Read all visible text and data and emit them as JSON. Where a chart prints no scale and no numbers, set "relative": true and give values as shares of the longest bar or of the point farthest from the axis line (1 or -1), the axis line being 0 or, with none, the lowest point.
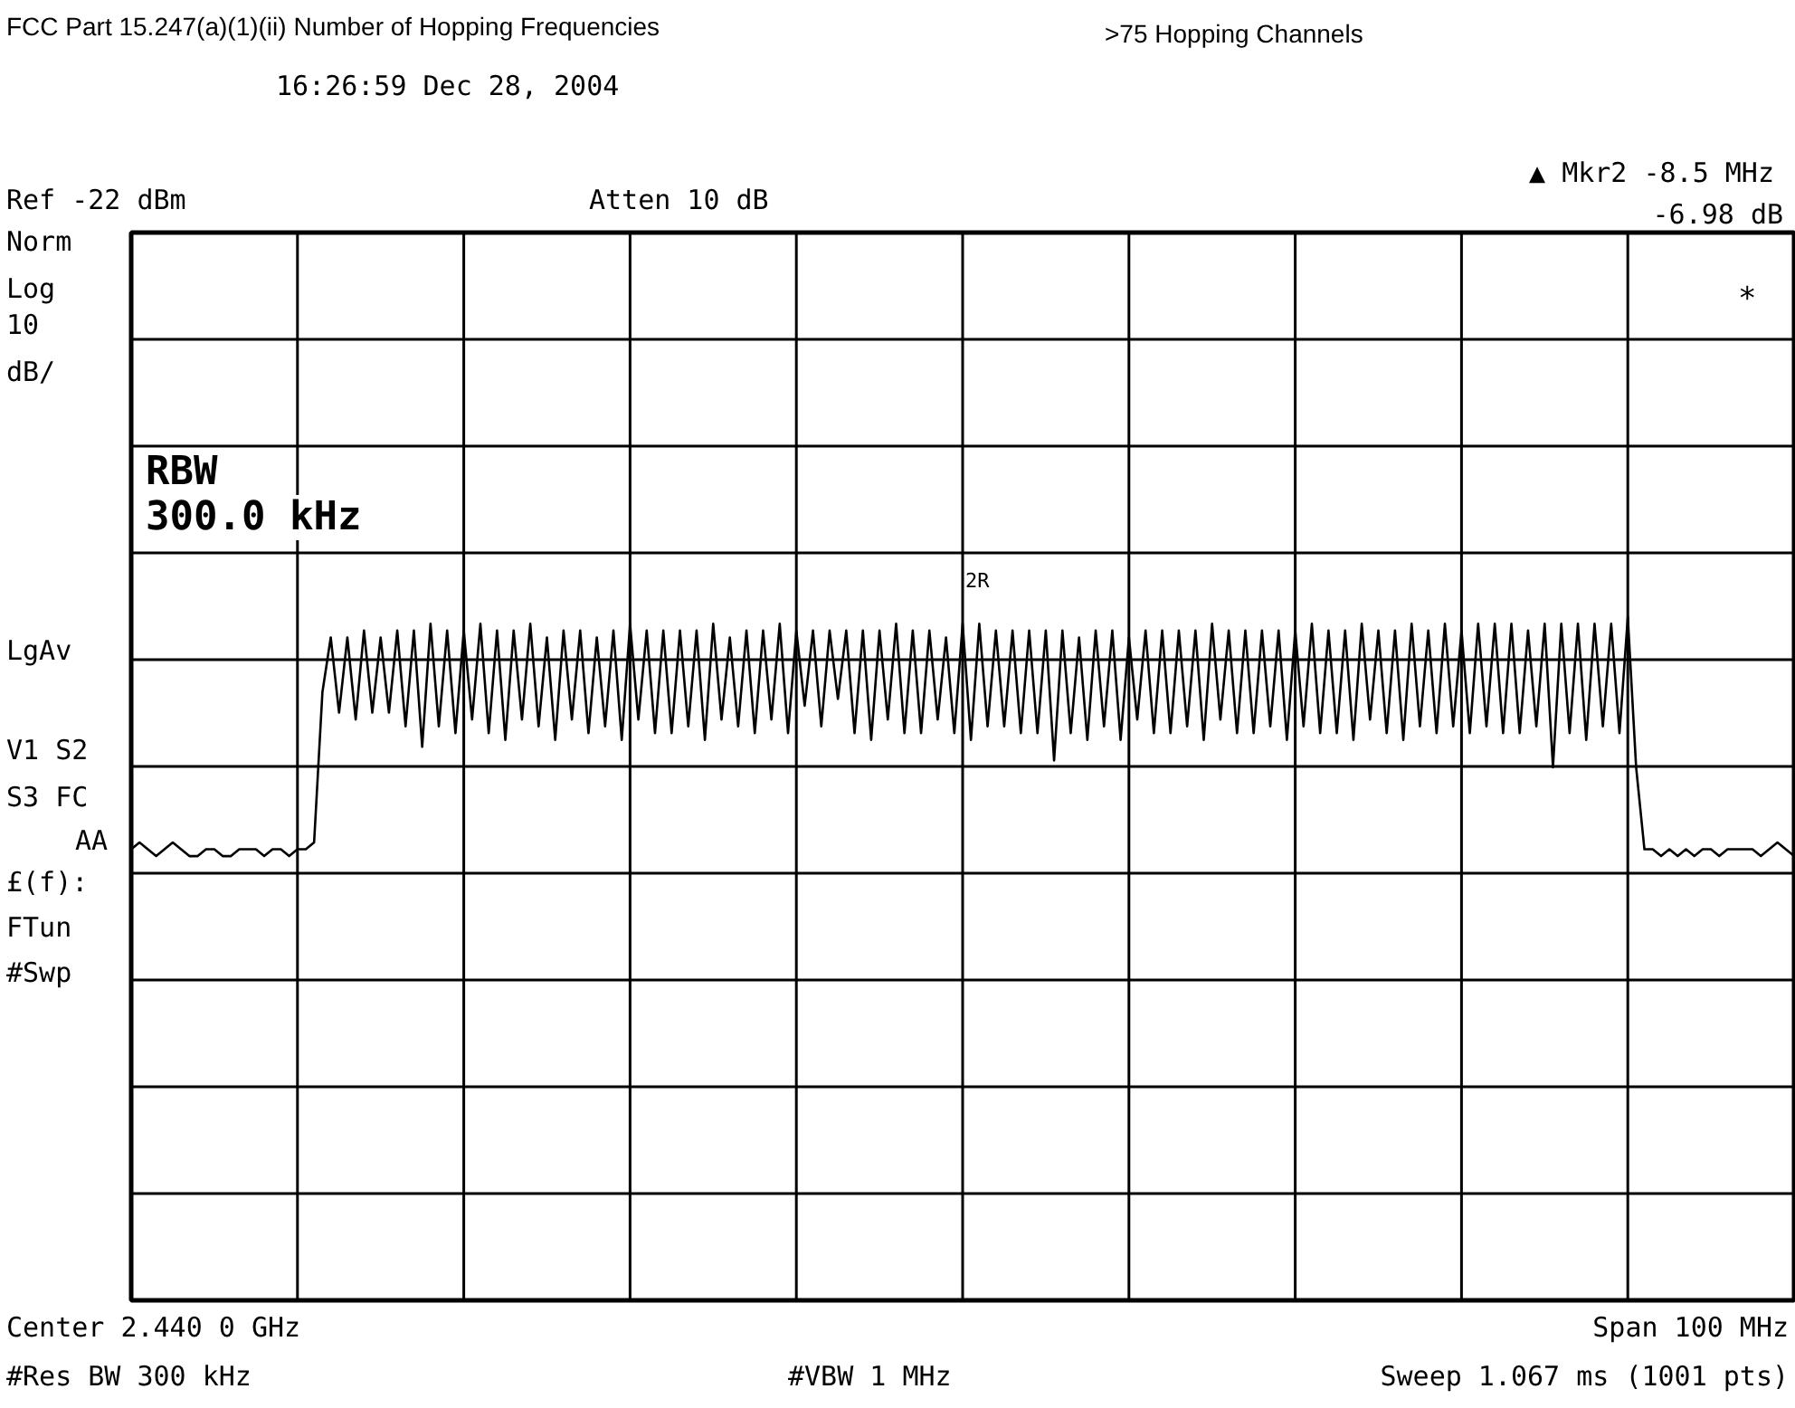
{
  "chart_data": {
    "type": "line",
    "title": "FCC Part 15.247(a)(1)(ii) Number of Hopping Frequencies",
    "subtitle": ">75 Hopping Channels",
    "relative": true,
    "categories": [
      null,
      null,
      null,
      null,
      null,
      null,
      null,
      null,
      null,
      null,
      null,
      null,
      null,
      null,
      null,
      null,
      null,
      null,
      null,
      null,
      null,
      null,
      null,
      null,
      null,
      null,
      null,
      null,
      null,
      null,
      null,
      null,
      null,
      null,
      null,
      null,
      null,
      null,
      null,
      null,
      null,
      null,
      null,
      null,
      null,
      null,
      null,
      null,
      null,
      null,
      null,
      null,
      null,
      null,
      null,
      null,
      null,
      null,
      null,
      null,
      null,
      null,
      null,
      null,
      null,
      null,
      null,
      null,
      null,
      null,
      null,
      null,
      null,
      null,
      null,
      null,
      null,
      null,
      null,
      null,
      null,
      null,
      null,
      null,
      null,
      null,
      null,
      null,
      null,
      null,
      null,
      null,
      null,
      null,
      null,
      null,
      null,
      null,
      null,
      null,
      null,
      null,
      null,
      null,
      null,
      null,
      null,
      null,
      null,
      null,
      null,
      null,
      null,
      null,
      null,
      null,
      null,
      null,
      null,
      null,
      null,
      null,
      null,
      null,
      null,
      null,
      null,
      null,
      null,
      null,
      null,
      null,
      null,
      null,
      null,
      null,
      null,
      null,
      null,
      null,
      null,
      null,
      null,
      null,
      null,
      null,
      null,
      null,
      null,
      null,
      null,
      null,
      null,
      null,
      null,
      null,
      null,
      null,
      null,
      null,
      null,
      null,
      null,
      null,
      null,
      null,
      null,
      null,
      null,
      null,
      null,
      null,
      null,
      null,
      null,
      null,
      null,
      null,
      null,
      null,
      null,
      null,
      null,
      null,
      null,
      null,
      null,
      null,
      null,
      null,
      null,
      null,
      null,
      null,
      null,
      null,
      null,
      null,
      null,
      null,
      null
    ],
    "grid": true,
    "series": [
      {
        "color": "#000000",
        "values": [
          0.66,
          0.67,
          0.66,
          0.65,
          0.66,
          0.67,
          0.66,
          0.65,
          0.65,
          0.66,
          0.66,
          0.65,
          0.65,
          0.66,
          0.66,
          0.66,
          0.65,
          0.66,
          0.66,
          0.65,
          0.66,
          0.66,
          0.67,
          0.89,
          0.97,
          0.86,
          0.97,
          0.85,
          0.98,
          0.86,
          0.97,
          0.86,
          0.98,
          0.84,
          0.98,
          0.81,
          0.99,
          0.84,
          0.98,
          0.83,
          0.98,
          0.85,
          0.99,
          0.83,
          0.98,
          0.82,
          0.98,
          0.85,
          0.99,
          0.84,
          0.97,
          0.82,
          0.98,
          0.85,
          0.98,
          0.83,
          0.97,
          0.84,
          0.98,
          0.82,
          0.99,
          0.85,
          0.98,
          0.83,
          0.98,
          0.83,
          0.98,
          0.84,
          0.98,
          0.82,
          0.99,
          0.85,
          0.97,
          0.84,
          0.98,
          0.83,
          0.98,
          0.85,
          0.99,
          0.83,
          0.98,
          0.87,
          0.98,
          0.84,
          0.98,
          0.88,
          0.98,
          0.83,
          0.98,
          0.82,
          0.98,
          0.85,
          0.99,
          0.83,
          0.98,
          0.83,
          0.98,
          0.85,
          0.97,
          0.83,
          0.99,
          0.82,
          0.99,
          0.84,
          0.98,
          0.84,
          0.98,
          0.83,
          0.98,
          0.83,
          0.98,
          0.79,
          0.98,
          0.83,
          0.97,
          0.82,
          0.98,
          0.84,
          0.98,
          0.82,
          0.97,
          0.85,
          0.98,
          0.83,
          0.98,
          0.83,
          0.98,
          0.84,
          0.98,
          0.82,
          0.99,
          0.85,
          0.98,
          0.83,
          0.98,
          0.83,
          0.98,
          0.84,
          0.98,
          0.82,
          0.98,
          0.84,
          0.99,
          0.83,
          0.98,
          0.83,
          0.98,
          0.82,
          0.99,
          0.85,
          0.98,
          0.83,
          0.98,
          0.82,
          0.99,
          0.84,
          0.98,
          0.83,
          0.99,
          0.84,
          0.98,
          0.83,
          0.99,
          0.84,
          0.99,
          0.83,
          0.99,
          0.83,
          0.98,
          0.84,
          0.99,
          0.78,
          0.99,
          0.83,
          0.99,
          0.82,
          0.99,
          0.84,
          0.99,
          0.83,
          1.0,
          0.78,
          0.66,
          0.66,
          0.65,
          0.66,
          0.65,
          0.66,
          0.65,
          0.66,
          0.66,
          0.65,
          0.66,
          0.66,
          0.66,
          0.66,
          0.65,
          0.66,
          0.67,
          0.66,
          0.65
        ]
      }
    ],
    "annotations": [
      "16:26:59 Dec 28, 2004",
      "▲ Mkr2  -8.5 MHz",
      "-6.98 dB",
      "Ref -22 dBm",
      "Atten 10 dB",
      "Norm",
      "Log",
      "10",
      "dB/",
      "LgAv",
      "V1  S2",
      "S3  FC",
      "AA",
      "£(f):",
      "FTun",
      "#Swp",
      "RBW",
      "300.0 kHz",
      "*",
      "Center 2.440 0 GHz",
      "Span 100 MHz",
      "#Res BW 300 kHz",
      "#VBW 1 MHz",
      "Sweep 1.067 ms (1001 pts)",
      "2R"
    ]
  }
}
